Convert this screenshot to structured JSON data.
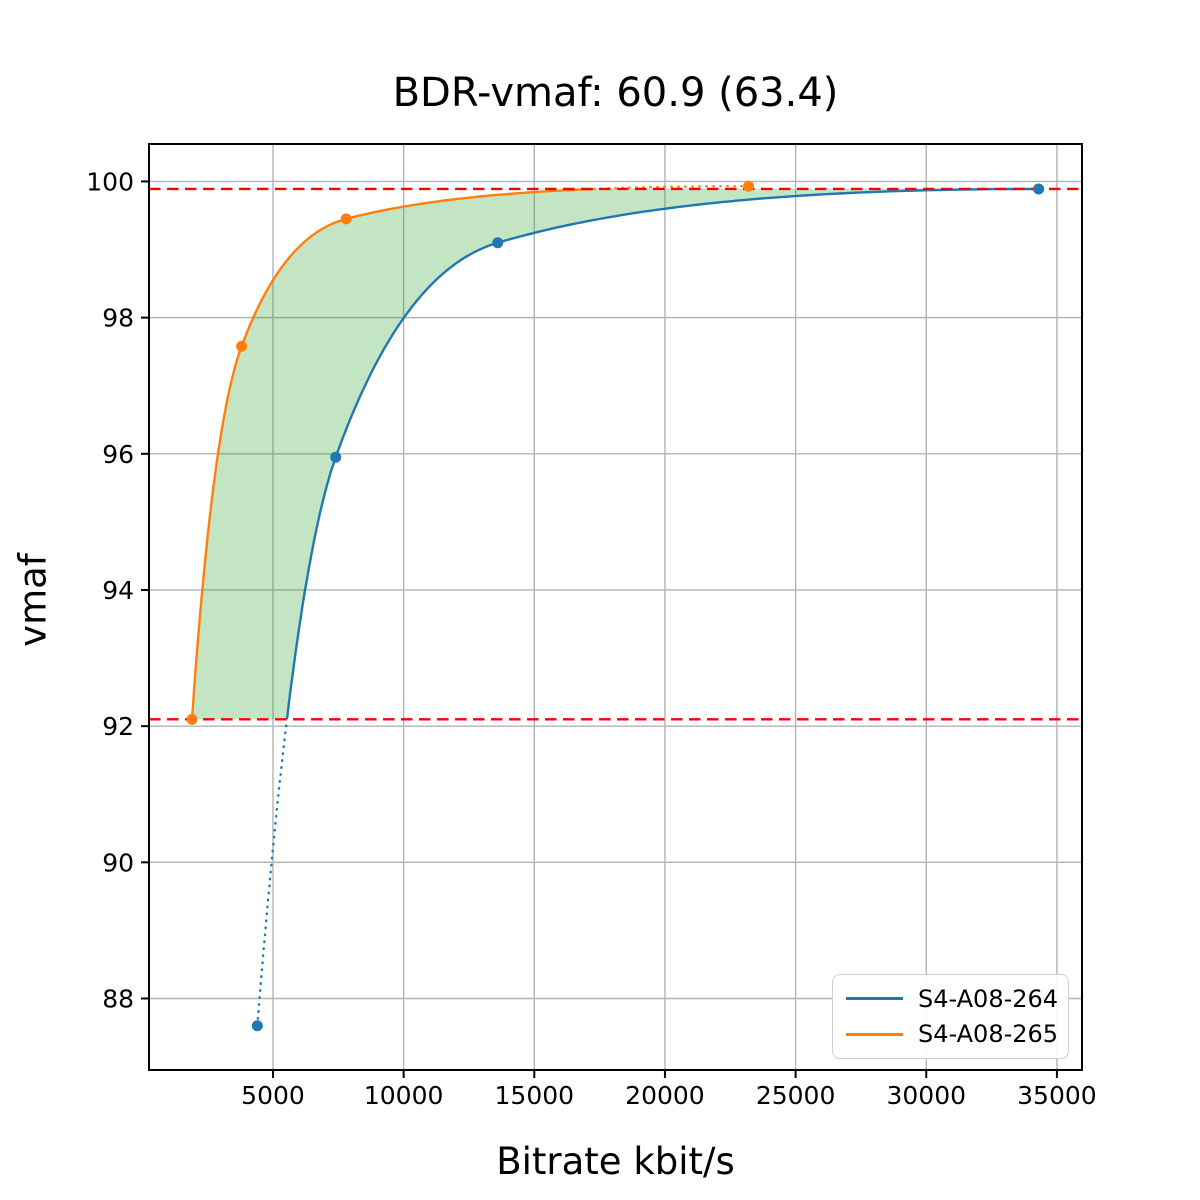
{
  "figure": {
    "title": "BDR-vmaf: 60.9 (63.4)",
    "xlabel": "Bitrate kbit/s",
    "ylabel": "vmaf"
  },
  "legend": {
    "entries": [
      {
        "label": "S4-A08-264",
        "color": "#1f77b4"
      },
      {
        "label": "S4-A08-265",
        "color": "#ff7f0e"
      }
    ]
  },
  "chart_data": {
    "type": "line",
    "title": "BDR-vmaf: 60.9 (63.4)",
    "xlabel": "Bitrate kbit/s",
    "ylabel": "vmaf",
    "xlim": [
      255,
      35960
    ],
    "ylim": [
      86.95,
      100.55
    ],
    "x_ticks": [
      5000,
      10000,
      15000,
      20000,
      25000,
      30000,
      35000
    ],
    "y_ticks": [
      88,
      90,
      92,
      94,
      96,
      98,
      100
    ],
    "grid": true,
    "grid_color": "#b3b3b3",
    "legend_position": "lower right",
    "series": [
      {
        "name": "S4-A08-264",
        "color": "#1f77b4",
        "x": [
          4400,
          7400,
          13600,
          34300
        ],
        "y": [
          87.6,
          95.95,
          99.1,
          99.89
        ],
        "dotted_below_vmaf": 92.1
      },
      {
        "name": "S4-A08-265",
        "color": "#ff7f0e",
        "x": [
          1900,
          3800,
          7800,
          23200
        ],
        "y": [
          92.1,
          97.58,
          99.45,
          99.93
        ],
        "dotted_above_vmaf": 99.89
      }
    ],
    "hlines": [
      {
        "y": 99.89,
        "color": "#ff0000",
        "style": "dashed"
      },
      {
        "y": 92.1,
        "color": "#ff0000",
        "style": "dashed"
      }
    ],
    "fill_between": {
      "color": "#2ca02c",
      "alpha": 0.28,
      "clip_vmaf": [
        92.1,
        99.89
      ]
    }
  }
}
